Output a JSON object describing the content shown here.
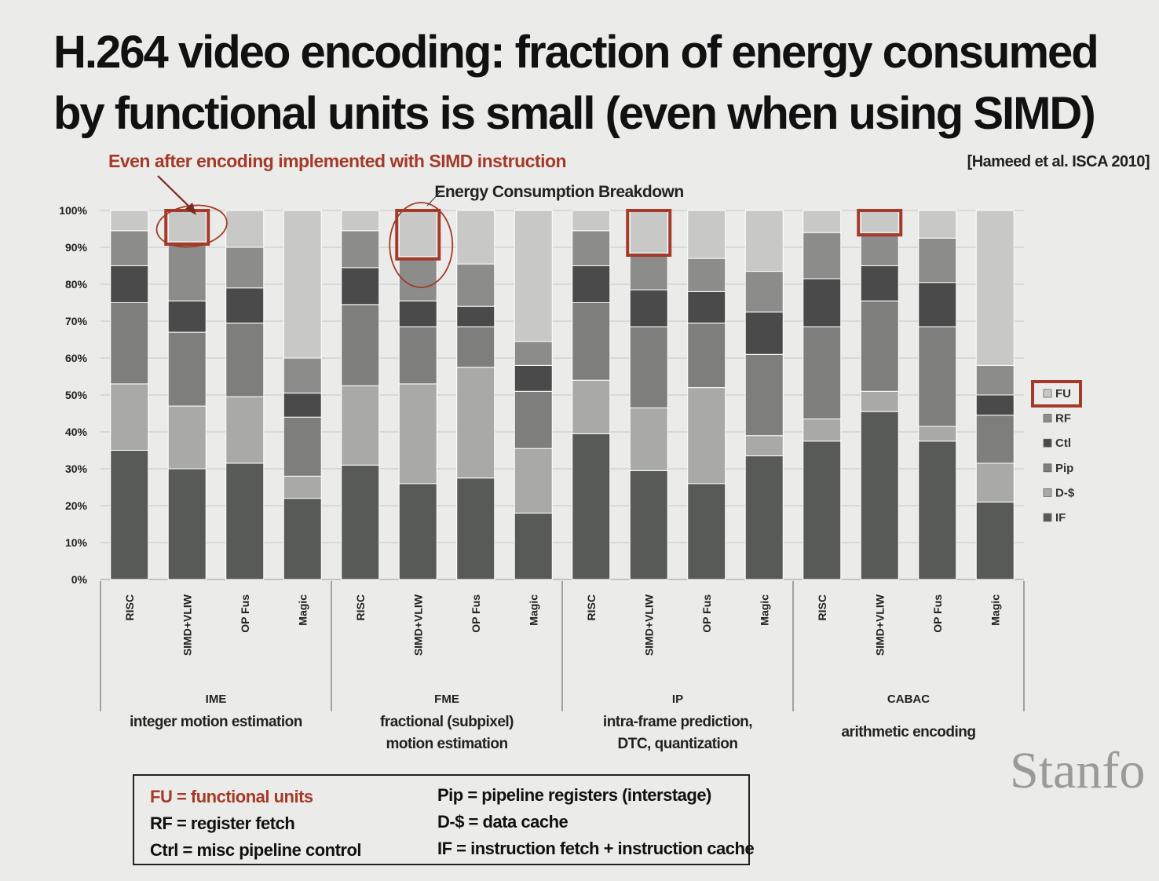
{
  "slide": {
    "title": "H.264 video encoding: fraction of energy consumed by functional units is small (even when using SIMD)",
    "annotation": "Even after encoding implemented with SIMD instruction",
    "citation": "[Hameed et al. ISCA 2010]",
    "brand": "Stanfo"
  },
  "chart_data": {
    "type": "bar",
    "stacked": true,
    "title": "Energy Consumption Breakdown",
    "ylim": [
      0,
      100
    ],
    "yticks": [
      "0%",
      "10%",
      "20%",
      "30%",
      "40%",
      "50%",
      "60%",
      "70%",
      "80%",
      "90%",
      "100%"
    ],
    "grid": true,
    "legend_position": "right",
    "categories": [
      "RISC",
      "SIMD+VLIW",
      "OP Fus",
      "Magic",
      "RISC",
      "SIMD+VLIW",
      "OP Fus",
      "Magic",
      "RISC",
      "SIMD+VLIW",
      "OP Fus",
      "Magic",
      "RISC",
      "SIMD+VLIW",
      "OP Fus",
      "Magic"
    ],
    "groups": [
      {
        "name": "IME",
        "description": "integer motion estimation"
      },
      {
        "name": "FME",
        "description": "fractional (subpixel) motion estimation"
      },
      {
        "name": "IP",
        "description": "intra-frame prediction, DTC, quantization"
      },
      {
        "name": "CABAC",
        "description": "arithmetic encoding"
      }
    ],
    "series": [
      {
        "name": "IF",
        "color": "#585a58",
        "values": [
          35,
          30,
          31.5,
          22,
          31,
          26,
          27.5,
          18,
          39.5,
          29.5,
          26,
          33.5,
          37.5,
          45.5,
          37.5,
          21
        ]
      },
      {
        "name": "D-$",
        "color": "#a9aaa8",
        "values": [
          18,
          17,
          18,
          6,
          21.5,
          27,
          30,
          17.5,
          14.5,
          17,
          26,
          5.5,
          6,
          5.5,
          4,
          10.5
        ]
      },
      {
        "name": "Pip",
        "color": "#7e7f7d",
        "values": [
          22,
          20,
          20,
          16,
          22,
          15.5,
          11,
          15.5,
          21,
          22,
          17.5,
          22,
          25,
          24.5,
          27,
          13
        ]
      },
      {
        "name": "Ctl",
        "color": "#494a49",
        "values": [
          10,
          8.5,
          9.5,
          6.5,
          10,
          7,
          5.5,
          7,
          10,
          10,
          8.5,
          11.5,
          13,
          9.5,
          12,
          5.5
        ]
      },
      {
        "name": "RF",
        "color": "#8c8d8b",
        "values": [
          9.5,
          16,
          11,
          9.5,
          10,
          12,
          11.5,
          6.5,
          9.5,
          10,
          9,
          11,
          12.5,
          9,
          12,
          8
        ]
      },
      {
        "name": "FU",
        "color": "#c8c9c7",
        "values": [
          5.5,
          8.5,
          10,
          40,
          5.5,
          12.5,
          14.5,
          35.5,
          5.5,
          11.5,
          13,
          16.5,
          6,
          6,
          7.5,
          42
        ]
      }
    ],
    "highlighted": [
      "SIMD+VLIW FU (IME)",
      "SIMD+VLIW FU (FME)",
      "SIMD+VLIW FU (IP)",
      "SIMD+VLIW FU (CABAC)",
      "FU legend entry"
    ]
  },
  "glossary": {
    "left": [
      "FU = functional units",
      "RF = register fetch",
      "Ctrl = misc pipeline control"
    ],
    "right": [
      "Pip = pipeline registers (interstage)",
      "D-$ = data cache",
      "IF = instruction fetch + instruction cache"
    ]
  },
  "colors": {
    "background": "#ebebe9",
    "highlight": "#a33a2a",
    "brand": "#9a9a9a"
  }
}
